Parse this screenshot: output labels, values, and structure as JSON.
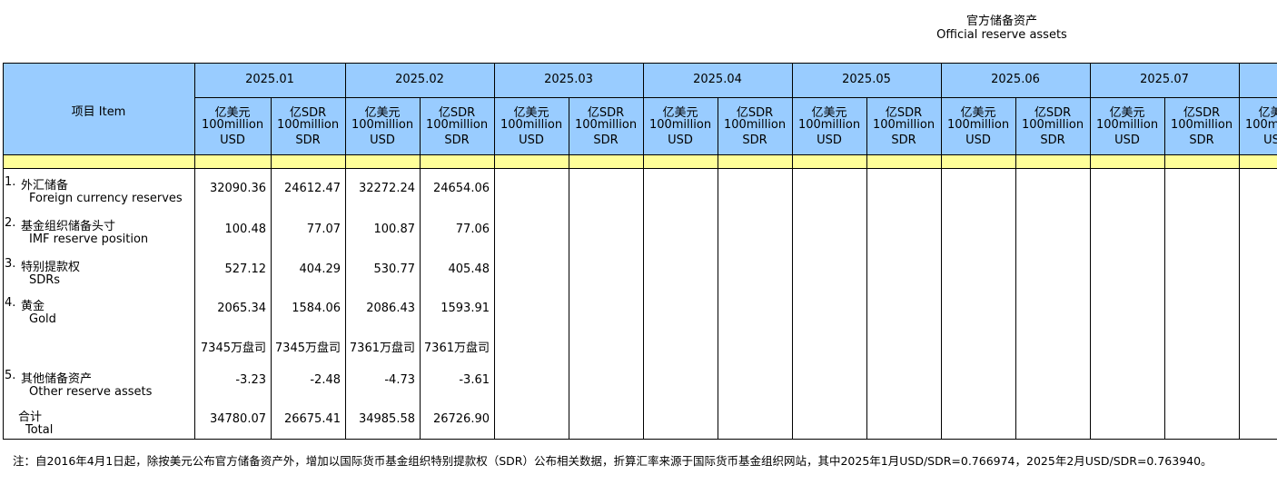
{
  "header": {
    "title_cn": "官方储备资产",
    "title_en": "Official reserve assets"
  },
  "table": {
    "item_header": "项目  Item",
    "months": [
      "2025.01",
      "2025.02",
      "2025.03",
      "2025.04",
      "2025.05",
      "2025.06",
      "2025.07"
    ],
    "unit_usd": [
      "亿美元",
      "100million",
      "USD"
    ],
    "unit_sdr": [
      "亿SDR",
      "100million",
      "SDR"
    ],
    "rows": [
      {
        "num": "1.",
        "label_cn": "外汇储备",
        "label_en": "Foreign currency reserves",
        "values": [
          "32090.36",
          "24612.47",
          "32272.24",
          "24654.06"
        ]
      },
      {
        "num": "2.",
        "label_cn": "基金组织储备头寸",
        "label_en": "IMF reserve position",
        "values": [
          "100.48",
          "77.07",
          "100.87",
          "77.06"
        ]
      },
      {
        "num": "3.",
        "label_cn": "特别提款权",
        "label_en": "SDRs",
        "values": [
          "527.12",
          "404.29",
          "530.77",
          "405.48"
        ]
      },
      {
        "num": "4.",
        "label_cn": "黄金",
        "label_en": "Gold",
        "values": [
          "2065.34",
          "1584.06",
          "2086.43",
          "1593.91"
        ]
      },
      {
        "values": [
          "7345万盘司",
          "7345万盘司",
          "7361万盘司",
          "7361万盘司"
        ]
      },
      {
        "num": "5.",
        "label_cn": "其他储备资产",
        "label_en": "Other reserve assets",
        "values": [
          "-3.23",
          "-2.48",
          "-4.73",
          "-3.61"
        ]
      },
      {
        "label_cn": "合计",
        "label_en": "Total",
        "values": [
          "34780.07",
          "26675.41",
          "34985.58",
          "26726.90"
        ]
      }
    ]
  },
  "footnote": "注：自2016年4月1日起，除按美元公布官方储备资产外，增加以国际货币基金组织特别提款权（SDR）公布相关数据，折算汇率来源于国际货币基金组织网站，其中2025年1月USD/SDR=0.766974，2025年2月USD/SDR=0.763940。"
}
